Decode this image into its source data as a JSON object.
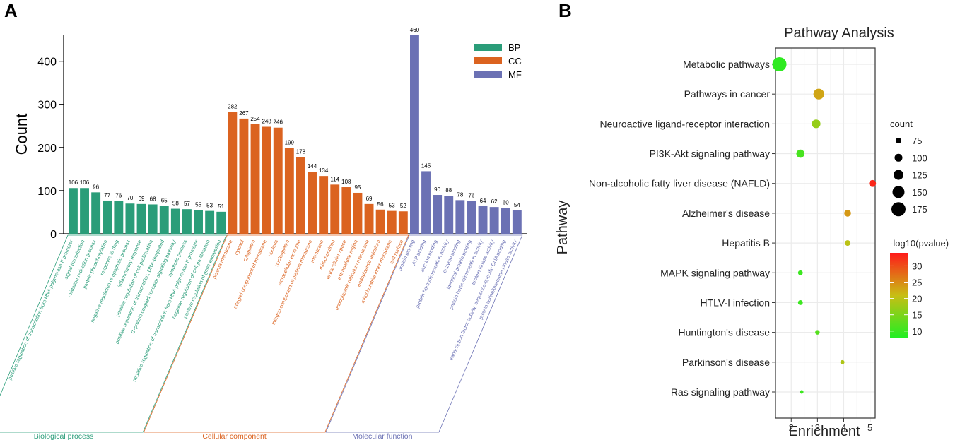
{
  "panel_labels": {
    "a": "A",
    "b": "B"
  },
  "colors": {
    "bp": "#2a9d79",
    "cc": "#db6320",
    "mf": "#6b71b4",
    "grid": "#ebebeb"
  },
  "chart_data": [
    {
      "type": "bar",
      "title": "",
      "ylabel": "Count",
      "xlabel": "",
      "ylim": [
        0,
        460
      ],
      "yticks": [
        0,
        100,
        200,
        300,
        400
      ],
      "legend": [
        {
          "key": "BP",
          "color": "#2a9d79"
        },
        {
          "key": "CC",
          "color": "#db6320"
        },
        {
          "key": "MF",
          "color": "#6b71b4"
        }
      ],
      "groups": [
        {
          "key": "BP",
          "name": "Biological process",
          "color": "#2a9d79",
          "categories": [
            "positive regulation of transcription from RNA polymerase II promoter",
            "signal transduction",
            "oxidation-reduction process",
            "protein phosphorylation",
            "response to drug",
            "negative regulation of apoptotic process",
            "inflammatory response",
            "positive regulation of cell proliferation",
            "positive regulation of transcription, DNA-templated",
            "G-protein coupled receptor signaling pathway",
            "apoptotic process",
            "negative regulation of transcription from RNA polymerase II promoter",
            "negative regulation of cell proliferation",
            "positive regulation of gene expression"
          ],
          "values": [
            106,
            106,
            96,
            77,
            76,
            70,
            69,
            68,
            65,
            58,
            57,
            55,
            53,
            51
          ]
        },
        {
          "key": "CC",
          "name": "Cellular component",
          "color": "#db6320",
          "categories": [
            "plasma membrane",
            "cytosol",
            "cytoplasm",
            "integral component of membrane",
            "nucleus",
            "nucleoplasm",
            "extracellular exosome",
            "integral component of plasma membrane",
            "membrane",
            "mitochondrion",
            "extracellular space",
            "extracellular region",
            "endoplasmic reticulum membrane",
            "endoplasmic reticulum",
            "mitochondrial inner membrane",
            "cell surface"
          ],
          "values": [
            282,
            267,
            254,
            248,
            246,
            199,
            178,
            144,
            134,
            114,
            108,
            95,
            69,
            56,
            53,
            52
          ]
        },
        {
          "key": "MF",
          "name": "Molecular function",
          "color": "#6b71b4",
          "categories": [
            "protein binding",
            "ATP binding",
            "zinc ion binding",
            "protein homodimerization activity",
            "enzyme binding",
            "identical protein binding",
            "protein heterodimerization activity",
            "protein kinase activity",
            "transcription factor activity, sequence-specific DNA binding",
            "protein serine/threonine kinase activity"
          ],
          "values": [
            460,
            145,
            90,
            88,
            78,
            76,
            64,
            62,
            60,
            54
          ]
        }
      ]
    },
    {
      "type": "scatter",
      "title": "Pathway Analysis",
      "xlabel": "Enrichment",
      "ylabel": "Pathway",
      "xlim": [
        1.4,
        5.2
      ],
      "xticks": [
        2,
        3,
        4,
        5
      ],
      "size_legend": {
        "title": "count",
        "values": [
          75,
          100,
          125,
          150,
          175
        ]
      },
      "color_legend": {
        "title": "-log10(pvalue)",
        "min": 8,
        "max": 34,
        "ticks": [
          10,
          15,
          20,
          25,
          30
        ],
        "low_color": "#22ee22",
        "high_color": "#ff1a1a"
      },
      "points": [
        {
          "pathway": "Metabolic pathways",
          "enrichment": 1.55,
          "count": 175,
          "neglog10p": 9
        },
        {
          "pathway": "Pathways in cancer",
          "enrichment": 3.05,
          "count": 135,
          "neglog10p": 23
        },
        {
          "pathway": "Neuroactive ligand-receptor interaction",
          "enrichment": 2.95,
          "count": 110,
          "neglog10p": 17
        },
        {
          "pathway": "PI3K-Akt signaling pathway",
          "enrichment": 2.35,
          "count": 105,
          "neglog10p": 11
        },
        {
          "pathway": "Non-alcoholic fatty liver disease (NAFLD)",
          "enrichment": 5.1,
          "count": 90,
          "neglog10p": 33
        },
        {
          "pathway": "Alzheimer's disease",
          "enrichment": 4.15,
          "count": 88,
          "neglog10p": 24
        },
        {
          "pathway": "Hepatitis B",
          "enrichment": 4.15,
          "count": 75,
          "neglog10p": 20
        },
        {
          "pathway": "MAPK signaling pathway",
          "enrichment": 2.35,
          "count": 65,
          "neglog10p": 10
        },
        {
          "pathway": "HTLV-I infection",
          "enrichment": 2.35,
          "count": 65,
          "neglog10p": 10
        },
        {
          "pathway": "Huntington's disease",
          "enrichment": 3.0,
          "count": 62,
          "neglog10p": 12
        },
        {
          "pathway": "Parkinson's disease",
          "enrichment": 3.95,
          "count": 58,
          "neglog10p": 19
        },
        {
          "pathway": "Ras signaling pathway",
          "enrichment": 2.4,
          "count": 50,
          "neglog10p": 10
        }
      ]
    }
  ]
}
